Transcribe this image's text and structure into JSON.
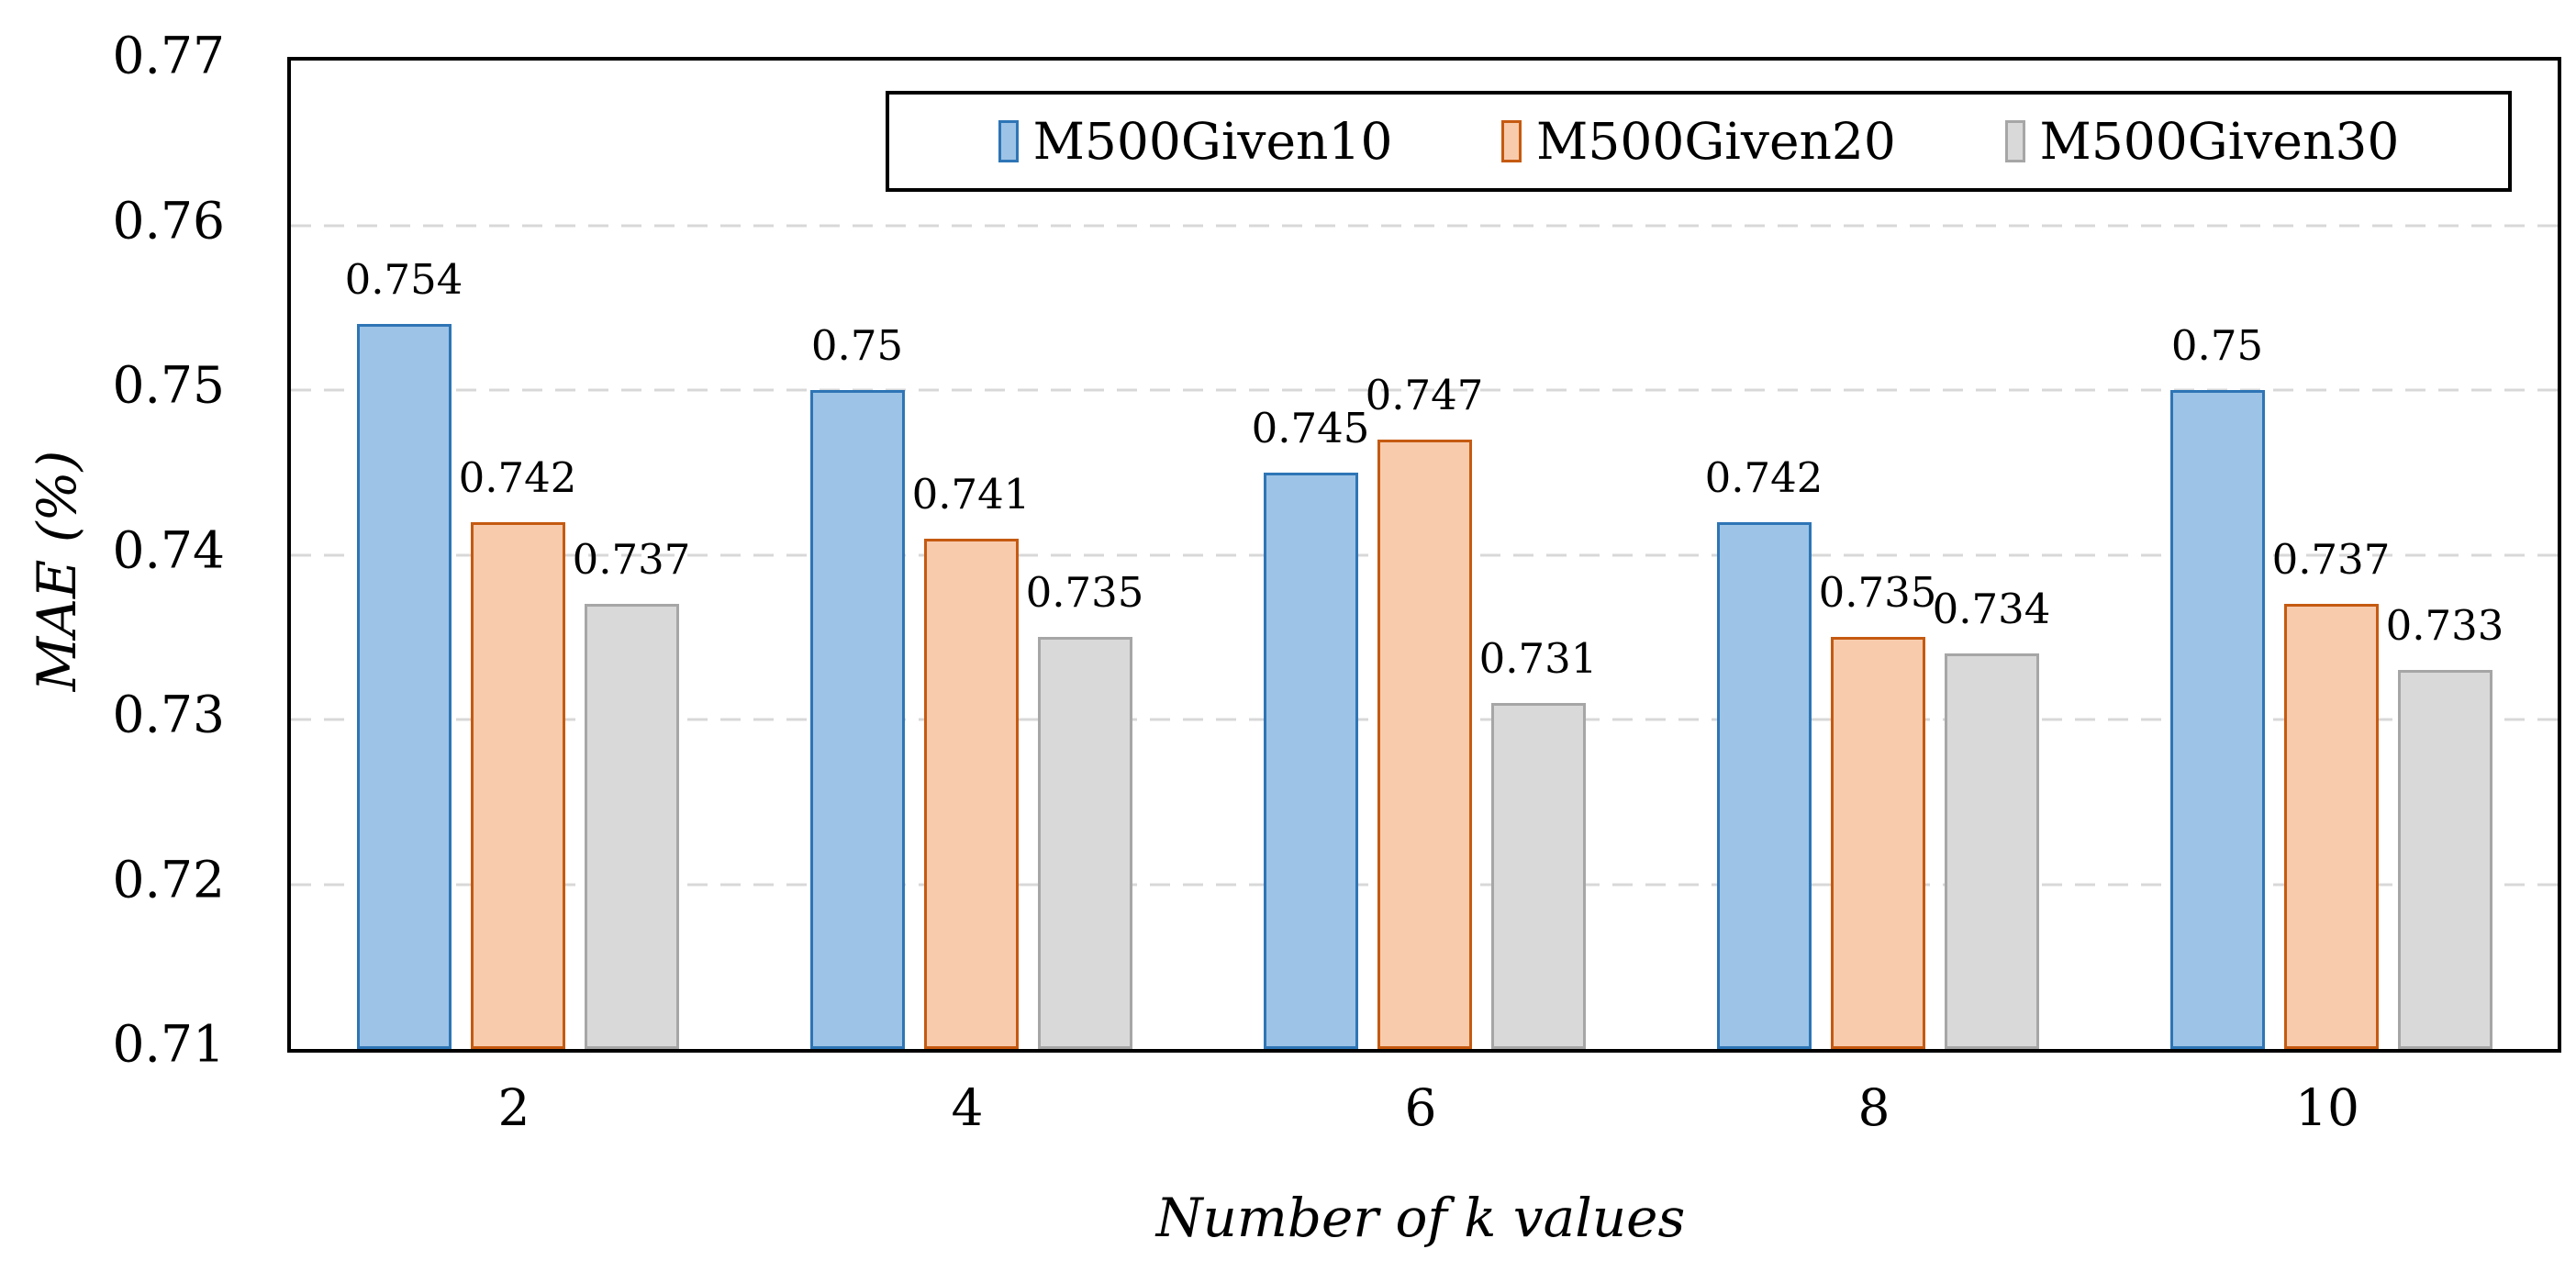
{
  "chart_data": {
    "type": "bar",
    "title": "",
    "xlabel": "Number of k values",
    "ylabel": "MAE (%)",
    "categories": [
      "2",
      "4",
      "6",
      "8",
      "10"
    ],
    "series": [
      {
        "name": "M500Given10",
        "fill": "#9DC3E6",
        "border": "#2E75B6",
        "values": [
          0.754,
          0.75,
          0.745,
          0.742,
          0.75
        ],
        "labels": [
          "0.754",
          "0.75",
          "0.745",
          "0.742",
          "0.75"
        ]
      },
      {
        "name": "M500Given20",
        "fill": "#F8CBAD",
        "border": "#C55A11",
        "values": [
          0.742,
          0.741,
          0.747,
          0.735,
          0.737
        ],
        "labels": [
          "0.742",
          "0.741",
          "0.747",
          "0.735",
          "0.737"
        ]
      },
      {
        "name": "M500Given30",
        "fill": "#D9D9D9",
        "border": "#A6A6A6",
        "values": [
          0.737,
          0.735,
          0.731,
          0.734,
          0.733
        ],
        "labels": [
          "0.737",
          "0.735",
          "0.731",
          "0.734",
          "0.733"
        ]
      }
    ],
    "y_axis": {
      "min": 0.71,
      "max": 0.77,
      "step": 0.01,
      "tick_labels": [
        "0.77",
        "0.76",
        "0.75",
        "0.74",
        "0.73",
        "0.72",
        "0.71"
      ]
    },
    "legend": {
      "position": "top-inside",
      "entries": [
        "M500Given10",
        "M500Given20",
        "M500Given30"
      ]
    },
    "grid": "horizontal-dashed",
    "axis_border_color": "#000000",
    "gridline_color": "#D8D8D8"
  }
}
